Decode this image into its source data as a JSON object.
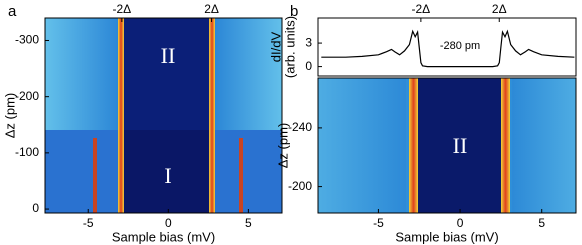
{
  "chart_data": [
    {
      "type": "heatmap",
      "panel_label": "a",
      "xlabel": "Sample bias (mV)",
      "ylabel": "Δz (pm)",
      "xlim": [
        -7.7,
        7.1
      ],
      "xticks": [
        -5,
        0,
        5
      ],
      "ylim": [
        7,
        -340
      ],
      "yticks": [
        0,
        -100,
        -200,
        -300
      ],
      "top_ticks": [
        {
          "value": -2.9,
          "label": "-2Δ"
        },
        {
          "value": 2.7,
          "label": "2Δ"
        }
      ],
      "annotations": [
        "II",
        "I"
      ]
    },
    {
      "type": "line",
      "panel_label": "b",
      "ylabel": [
        "dI/dV",
        "(arb. units)"
      ],
      "color": "#000000",
      "xlim": [
        -8.7,
        7.1
      ],
      "ylim": [
        -1.2,
        6.2
      ],
      "yticks": [
        0,
        3
      ],
      "top_ticks": [
        {
          "value": -2.4,
          "label": "-2Δ"
        },
        {
          "value": 2.4,
          "label": "2Δ"
        }
      ],
      "annotations": [
        "-280 pm"
      ],
      "x": [
        -8.5,
        -7,
        -6,
        -5,
        -4.5,
        -4.2,
        -4,
        -3.7,
        -3.4,
        -3.1,
        -2.9,
        -2.75,
        -2.6,
        -2.5,
        -2.4,
        -2.3,
        -2,
        -1,
        0,
        1,
        2,
        2.3,
        2.4,
        2.5,
        2.6,
        2.75,
        2.9,
        3.1,
        3.4,
        3.7,
        4,
        4.2,
        4.5,
        5,
        6,
        7
      ],
      "values": [
        1.2,
        1.2,
        1.3,
        1.5,
        1.9,
        2.2,
        1.9,
        1.5,
        2,
        2.8,
        4.5,
        3.8,
        4.4,
        2.5,
        0.5,
        0.1,
        0,
        0,
        0,
        0,
        0,
        0.1,
        0.5,
        2.5,
        4.4,
        3.8,
        4.5,
        2.8,
        2,
        1.5,
        1.9,
        2.2,
        1.9,
        1.5,
        1.3,
        1.2
      ]
    },
    {
      "type": "heatmap",
      "xlabel": "Sample bias (mV)",
      "ylabel": "Δz (pm)",
      "xlim": [
        -8.7,
        7.1
      ],
      "xticks": [
        -5,
        0,
        5
      ],
      "ylim": [
        -182,
        -274
      ],
      "yticks": [
        -240,
        -200
      ],
      "annotations": [
        "II"
      ]
    }
  ]
}
